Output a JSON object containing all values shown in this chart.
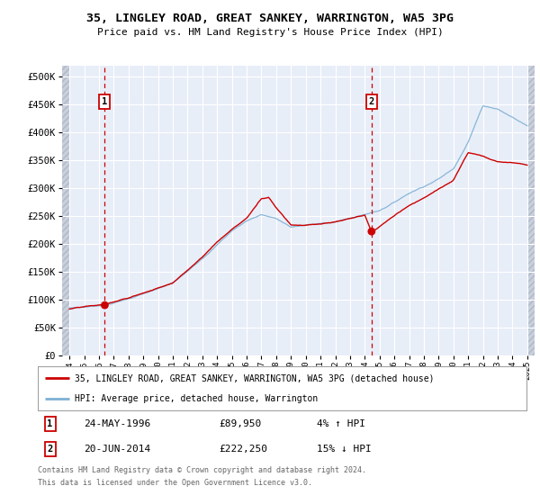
{
  "title": "35, LINGLEY ROAD, GREAT SANKEY, WARRINGTON, WA5 3PG",
  "subtitle": "Price paid vs. HM Land Registry's House Price Index (HPI)",
  "xlim": [
    1993.5,
    2025.5
  ],
  "ylim": [
    0,
    520000
  ],
  "yticks": [
    0,
    50000,
    100000,
    150000,
    200000,
    250000,
    300000,
    350000,
    400000,
    450000,
    500000
  ],
  "ytick_labels": [
    "£0",
    "£50K",
    "£100K",
    "£150K",
    "£200K",
    "£250K",
    "£300K",
    "£350K",
    "£400K",
    "£450K",
    "£500K"
  ],
  "xticks": [
    1994,
    1995,
    1996,
    1997,
    1998,
    1999,
    2000,
    2001,
    2002,
    2003,
    2004,
    2005,
    2006,
    2007,
    2008,
    2009,
    2010,
    2011,
    2012,
    2013,
    2014,
    2015,
    2016,
    2017,
    2018,
    2019,
    2020,
    2021,
    2022,
    2023,
    2024,
    2025
  ],
  "sale1_x": 1996.39,
  "sale1_y": 89950,
  "sale2_x": 2014.46,
  "sale2_y": 222250,
  "sale1_date": "24-MAY-1996",
  "sale1_price": "£89,950",
  "sale1_hpi": "4% ↑ HPI",
  "sale2_date": "20-JUN-2014",
  "sale2_price": "£222,250",
  "sale2_hpi": "15% ↓ HPI",
  "property_color": "#cc0000",
  "hpi_color": "#7eb0d4",
  "background_color": "#ffffff",
  "plot_bg_color": "#e8eef8",
  "grid_color": "#ffffff",
  "hatch_color": "#c8d0dc",
  "legend_label1": "35, LINGLEY ROAD, GREAT SANKEY, WARRINGTON, WA5 3PG (detached house)",
  "legend_label2": "HPI: Average price, detached house, Warrington",
  "footer1": "Contains HM Land Registry data © Crown copyright and database right 2024.",
  "footer2": "This data is licensed under the Open Government Licence v3.0."
}
